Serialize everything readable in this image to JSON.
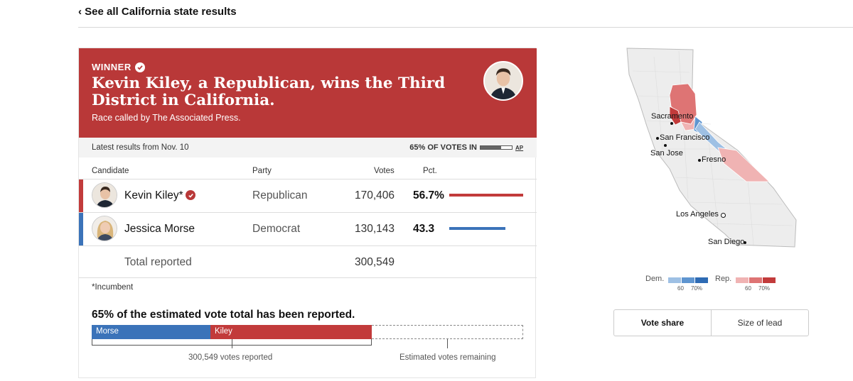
{
  "nav": {
    "back_label": "‹ See all California state results"
  },
  "banner": {
    "winner_label": "WINNER",
    "headline": "Kevin Kiley, a Republican, wins the Third District in California.",
    "called_by": "Race called by The Associated Press."
  },
  "status": {
    "latest": "Latest results from Nov. 10",
    "votes_in": "65% OF VOTES IN",
    "votes_in_fraction": 0.65,
    "source": "AP"
  },
  "table": {
    "headers": {
      "candidate": "Candidate",
      "party": "Party",
      "votes": "Votes",
      "pct": "Pct."
    },
    "rows": [
      {
        "name": "Kevin Kiley*",
        "party": "Republican",
        "votes": "170,406",
        "pct": "56.7%",
        "pct_value": 56.7,
        "color": "#c23b3b",
        "winner": true
      },
      {
        "name": "Jessica Morse",
        "party": "Democrat",
        "votes": "130,143",
        "pct": "43.3",
        "pct_value": 43.3,
        "color": "#3b73b9",
        "winner": false
      }
    ],
    "total_label": "Total reported",
    "total_votes": "300,549",
    "footnote": "*Incumbent"
  },
  "estimate": {
    "title": "65% of the estimated vote total has been reported.",
    "dem_label": "Morse",
    "rep_label": "Kiley",
    "reported_label": "300,549 votes reported",
    "remaining_label": "Estimated votes remaining"
  },
  "map": {
    "cities": [
      "Sacramento",
      "San Francisco",
      "San Jose",
      "Fresno",
      "Los Angeles",
      "San Diego"
    ],
    "legend": {
      "dem": "Dem.",
      "rep": "Rep.",
      "tick_60": "60",
      "tick_70": "70%"
    },
    "colors": {
      "dem_light": "#9ec0e4",
      "dem_mid": "#5f95d0",
      "dem_dark": "#2e6bb4",
      "rep_light": "#f0b3b3",
      "rep_mid": "#de7474",
      "rep_dark": "#c23b3b"
    }
  },
  "toggle": {
    "vote_share": "Vote share",
    "size_of_lead": "Size of lead"
  }
}
